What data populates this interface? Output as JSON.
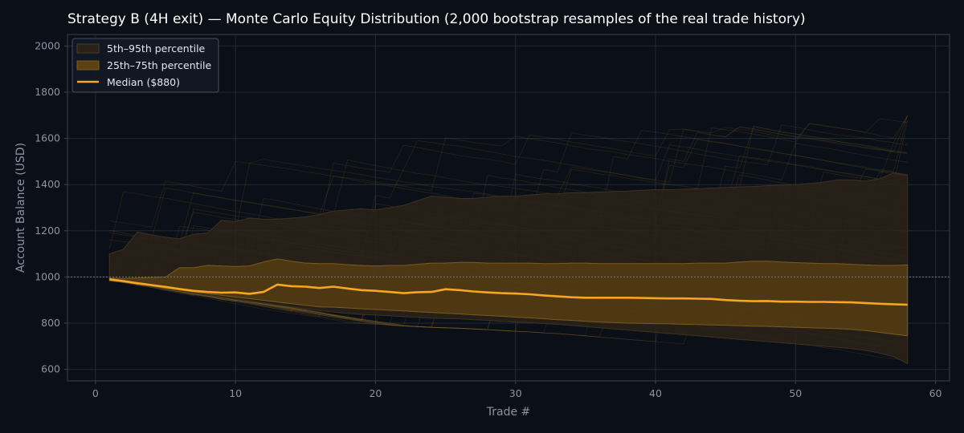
{
  "colors": {
    "background": "#0b0f17",
    "plot_background": "#0b0f17",
    "grid": "#222a37",
    "axis": "#3a4352",
    "band_outer": "#2a2219",
    "band_inner": "#5c4211",
    "median": "#f5a623",
    "paths": "#8a6a2a",
    "reference_line": "#6b7280"
  },
  "chart_data": {
    "type": "area",
    "title": "Strategy B (4H exit) — Monte Carlo Equity Distribution (2,000 bootstrap resamples of the real trade history)",
    "xlabel": "Trade #",
    "ylabel": "Account Balance (USD)",
    "xlim": [
      -2,
      61
    ],
    "ylim": [
      550,
      2050
    ],
    "xticks": [
      0,
      10,
      20,
      30,
      40,
      50,
      60
    ],
    "yticks": [
      600,
      800,
      1000,
      1200,
      1400,
      1600,
      1800,
      2000
    ],
    "grid": true,
    "reference_line_y": 1000,
    "legend": {
      "placement": "top-left",
      "entries": [
        "5th–95th percentile",
        "25th–75th percentile",
        "Median ($880)"
      ]
    },
    "x": [
      1,
      2,
      3,
      4,
      5,
      6,
      7,
      8,
      9,
      10,
      11,
      12,
      13,
      14,
      15,
      16,
      17,
      18,
      19,
      20,
      21,
      22,
      23,
      24,
      25,
      26,
      27,
      28,
      29,
      30,
      31,
      32,
      33,
      34,
      35,
      36,
      37,
      38,
      39,
      40,
      41,
      42,
      43,
      44,
      45,
      46,
      47,
      48,
      49,
      50,
      51,
      52,
      53,
      54,
      55,
      56,
      57,
      58
    ],
    "series": [
      {
        "name": "Median ($880)",
        "values": [
          990,
          982,
          973,
          965,
          957,
          948,
          940,
          935,
          932,
          933,
          927,
          935,
          967,
          960,
          958,
          952,
          958,
          950,
          943,
          940,
          935,
          930,
          934,
          935,
          947,
          943,
          937,
          933,
          930,
          928,
          925,
          920,
          916,
          912,
          910,
          910,
          910,
          910,
          909,
          908,
          907,
          907,
          906,
          905,
          900,
          897,
          895,
          896,
          893,
          893,
          892,
          892,
          891,
          890,
          887,
          884,
          882,
          880
        ]
      },
      {
        "name": "25th–75th percentile",
        "lower": [
          985,
          977,
          968,
          960,
          951,
          943,
          935,
          928,
          921,
          913,
          906,
          899,
          891,
          884,
          877,
          870,
          869,
          866,
          862,
          859,
          856,
          853,
          849,
          846,
          843,
          840,
          836,
          833,
          830,
          826,
          823,
          819,
          815,
          812,
          808,
          805,
          802,
          800,
          799,
          798,
          797,
          795,
          794,
          792,
          791,
          789,
          787,
          786,
          784,
          782,
          780,
          778,
          776,
          773,
          768,
          760,
          752,
          745
        ],
        "upper": [
          995,
          993,
          995,
          998,
          1000,
          1040,
          1040,
          1050,
          1048,
          1045,
          1048,
          1065,
          1078,
          1068,
          1060,
          1058,
          1058,
          1053,
          1050,
          1048,
          1050,
          1050,
          1055,
          1060,
          1060,
          1063,
          1063,
          1060,
          1060,
          1060,
          1060,
          1058,
          1058,
          1060,
          1060,
          1058,
          1058,
          1058,
          1058,
          1058,
          1058,
          1058,
          1060,
          1060,
          1060,
          1065,
          1068,
          1068,
          1065,
          1062,
          1060,
          1058,
          1058,
          1055,
          1052,
          1050,
          1050,
          1052
        ]
      },
      {
        "name": "5th–95th percentile",
        "lower": [
          982,
          976,
          966,
          957,
          948,
          939,
          930,
          921,
          912,
          903,
          895,
          887,
          878,
          870,
          862,
          855,
          848,
          842,
          838,
          835,
          832,
          828,
          825,
          822,
          820,
          818,
          815,
          812,
          808,
          805,
          802,
          798,
          795,
          790,
          785,
          780,
          775,
          770,
          765,
          760,
          755,
          750,
          745,
          740,
          735,
          730,
          725,
          720,
          715,
          710,
          705,
          700,
          695,
          690,
          682,
          670,
          655,
          625
        ]
      },
      {
        "name": "5th–95th percentile",
        "upper": [
          1100,
          1120,
          1195,
          1182,
          1172,
          1165,
          1185,
          1190,
          1245,
          1240,
          1255,
          1250,
          1250,
          1255,
          1260,
          1270,
          1285,
          1290,
          1295,
          1290,
          1300,
          1310,
          1330,
          1350,
          1345,
          1340,
          1340,
          1345,
          1350,
          1350,
          1355,
          1360,
          1360,
          1365,
          1365,
          1368,
          1370,
          1372,
          1375,
          1378,
          1378,
          1380,
          1382,
          1385,
          1388,
          1390,
          1392,
          1395,
          1398,
          1400,
          1405,
          1410,
          1420,
          1420,
          1415,
          1425,
          1450,
          1440
        ]
      }
    ]
  }
}
